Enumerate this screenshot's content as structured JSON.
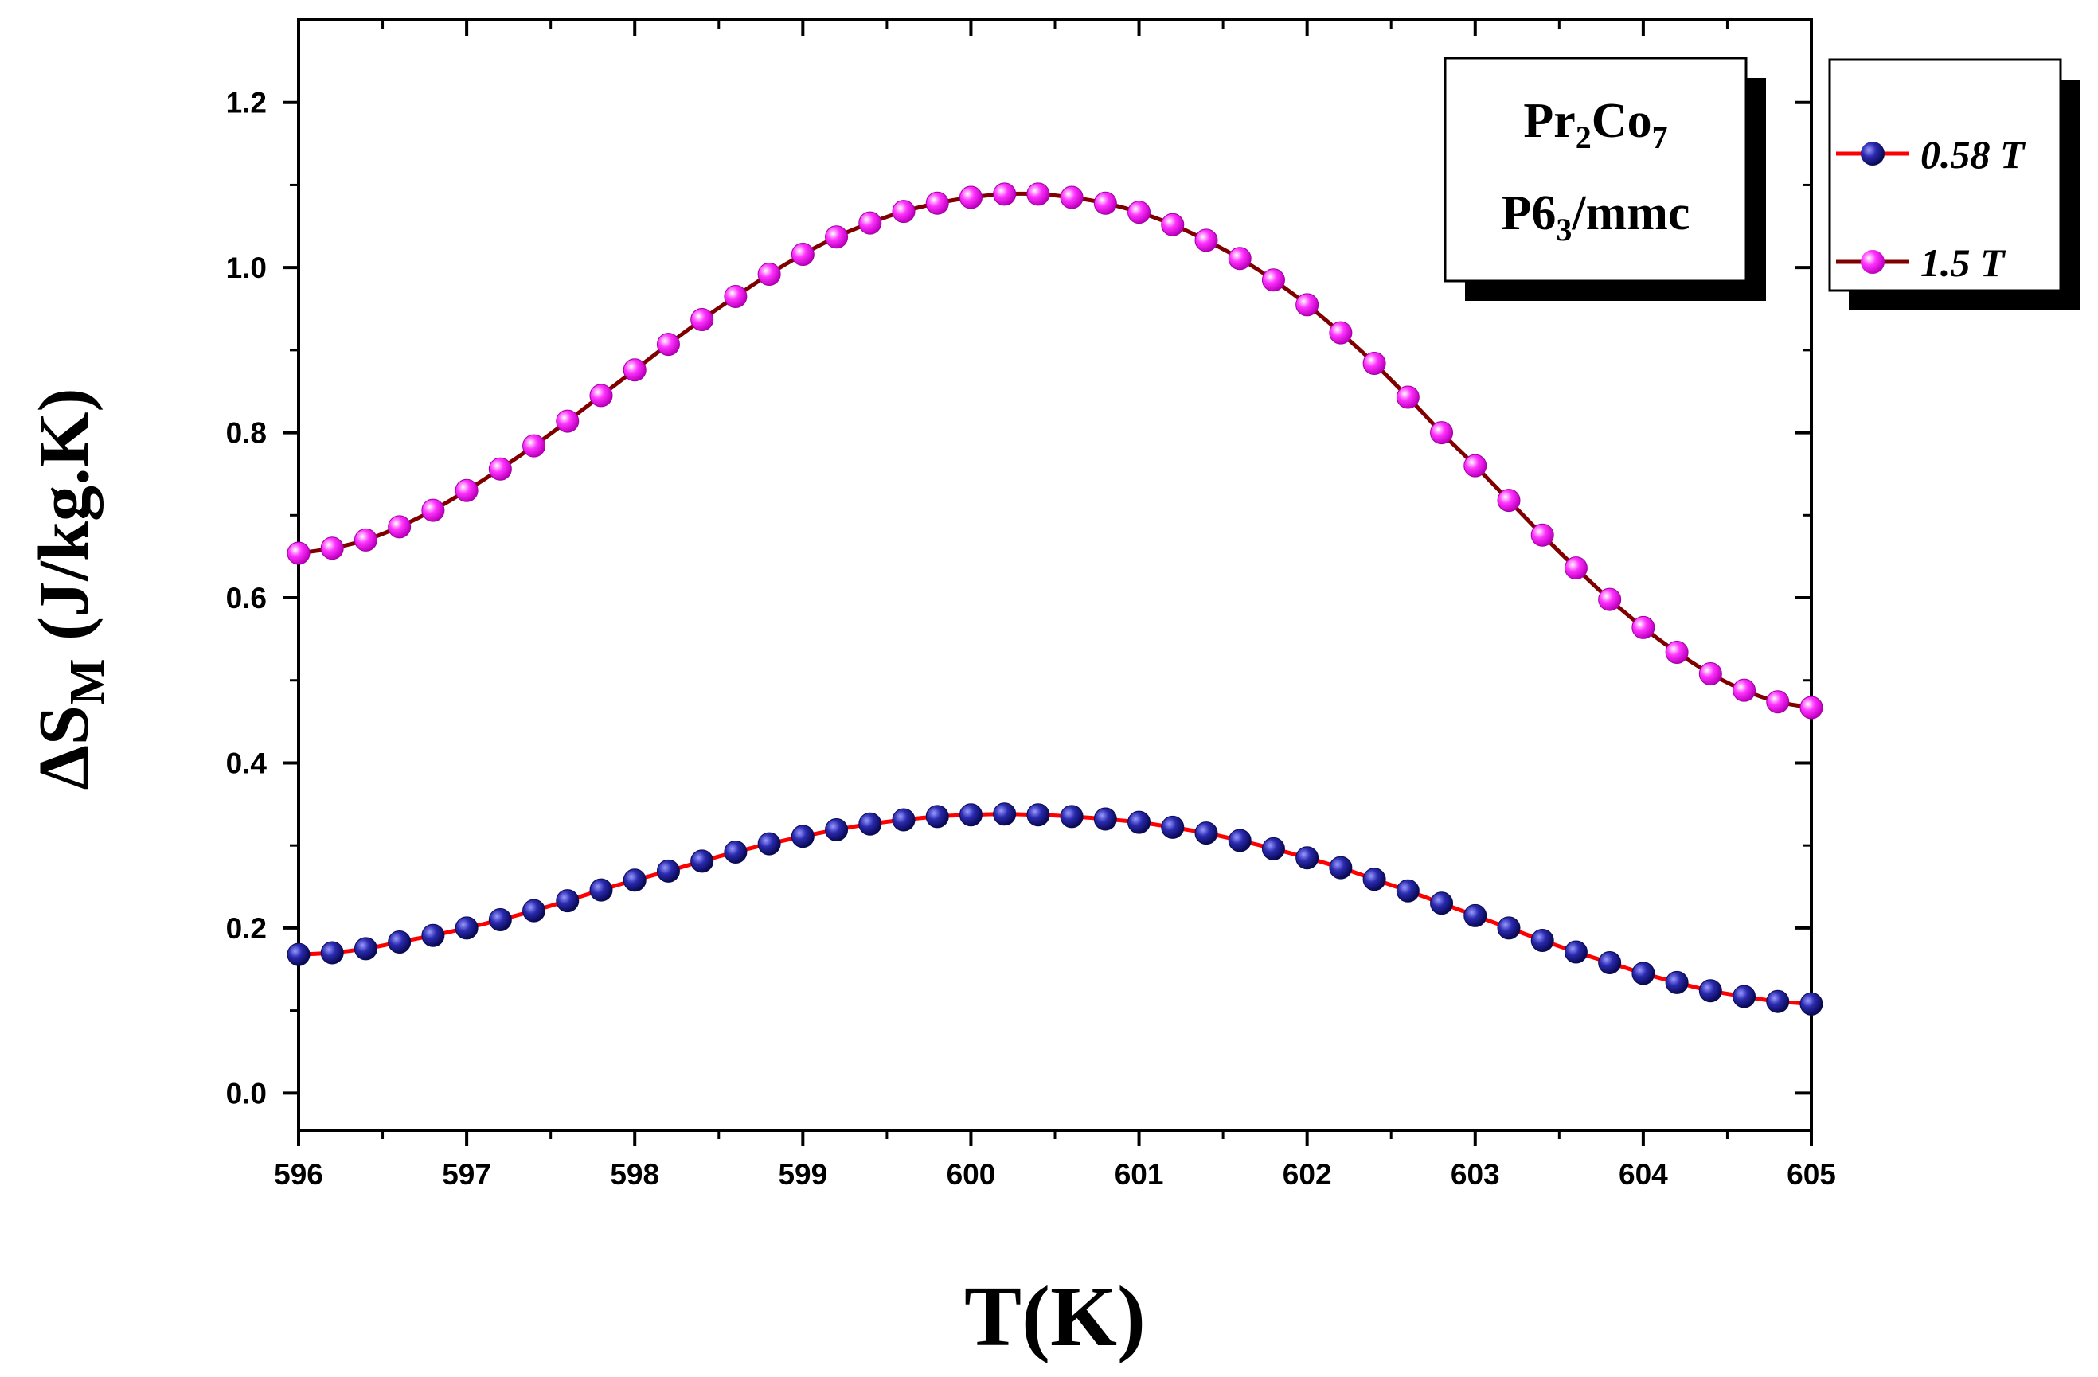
{
  "chart_data": {
    "type": "line",
    "title": "",
    "xlabel": "T(K)",
    "ylabel": {
      "prefix": "ΔS",
      "sub": "M",
      "suffix": " (J/kg.K)"
    },
    "xlim": [
      596,
      605
    ],
    "ylim": [
      -0.045,
      1.3
    ],
    "xticks": [
      596,
      597,
      598,
      599,
      600,
      601,
      602,
      603,
      604,
      605
    ],
    "xtick_labels": [
      "596",
      "597",
      "598",
      "599",
      "600",
      "601",
      "602",
      "603",
      "604",
      "605"
    ],
    "yticks": [
      0.0,
      0.2,
      0.4,
      0.6,
      0.8,
      1.0,
      1.2
    ],
    "ytick_labels": [
      "0.0",
      "0.2",
      "0.4",
      "0.6",
      "0.8",
      "1.0",
      "1.2"
    ],
    "grid": false,
    "legend_position": "outside-top-right",
    "annotation": {
      "line1": [
        "Pr",
        "2",
        "Co",
        "7"
      ],
      "line2": [
        "P6",
        "3",
        "/mmc"
      ]
    },
    "x": [
      596.0,
      596.2,
      596.4,
      596.6,
      596.8,
      597.0,
      597.2,
      597.4,
      597.6,
      597.8,
      598.0,
      598.2,
      598.4,
      598.6,
      598.8,
      599.0,
      599.2,
      599.4,
      599.6,
      599.8,
      600.0,
      600.2,
      600.4,
      600.6,
      600.8,
      601.0,
      601.2,
      601.4,
      601.6,
      601.8,
      602.0,
      602.2,
      602.4,
      602.6,
      602.8,
      603.0,
      603.2,
      603.4,
      603.6,
      603.8,
      604.0,
      604.2,
      604.4,
      604.6,
      604.8,
      605.0
    ],
    "series": [
      {
        "name": "0.58 T",
        "line_color": "#ff0000",
        "marker_color": "#1f1f9e",
        "values": [
          0.168,
          0.17,
          0.175,
          0.183,
          0.191,
          0.2,
          0.21,
          0.221,
          0.233,
          0.246,
          0.258,
          0.269,
          0.281,
          0.292,
          0.302,
          0.311,
          0.319,
          0.326,
          0.331,
          0.335,
          0.337,
          0.338,
          0.337,
          0.335,
          0.332,
          0.328,
          0.322,
          0.315,
          0.306,
          0.296,
          0.285,
          0.273,
          0.259,
          0.245,
          0.23,
          0.215,
          0.2,
          0.185,
          0.171,
          0.158,
          0.145,
          0.134,
          0.124,
          0.117,
          0.111,
          0.108
        ]
      },
      {
        "name": "1.5 T",
        "line_color": "#800000",
        "marker_color": "#ff00ff",
        "values": [
          0.654,
          0.66,
          0.67,
          0.686,
          0.706,
          0.73,
          0.756,
          0.784,
          0.814,
          0.845,
          0.876,
          0.907,
          0.937,
          0.965,
          0.992,
          1.016,
          1.037,
          1.054,
          1.068,
          1.078,
          1.085,
          1.089,
          1.089,
          1.085,
          1.078,
          1.067,
          1.052,
          1.033,
          1.011,
          0.985,
          0.955,
          0.921,
          0.884,
          0.843,
          0.8,
          0.76,
          0.718,
          0.676,
          0.636,
          0.598,
          0.564,
          0.534,
          0.508,
          0.488,
          0.474,
          0.467
        ]
      }
    ]
  }
}
